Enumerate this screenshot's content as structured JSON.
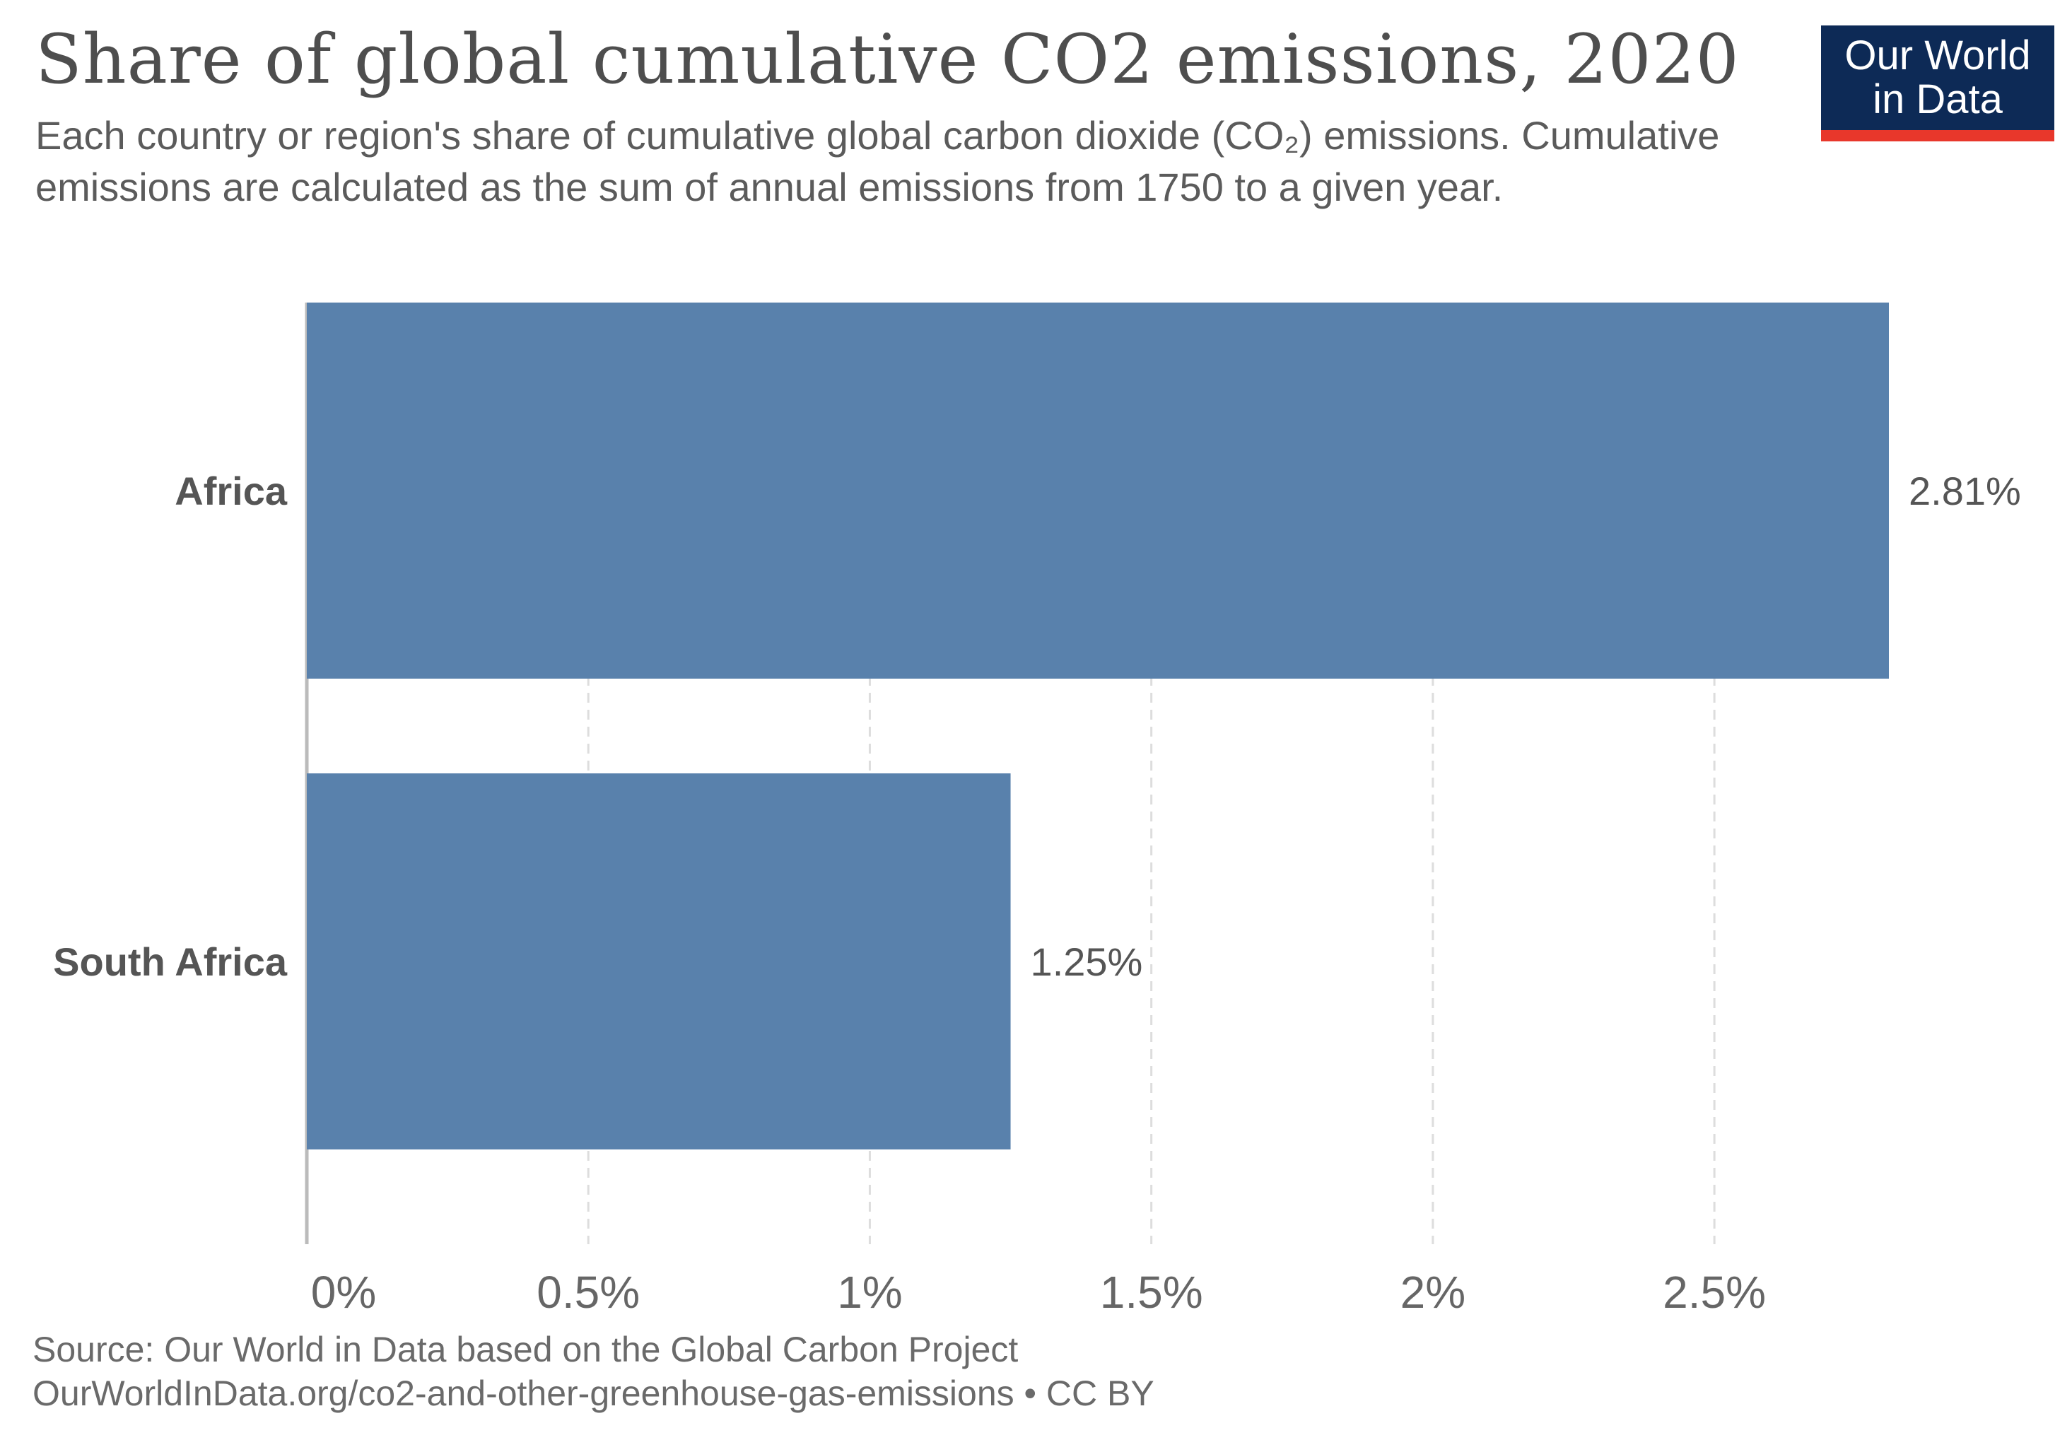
{
  "header": {
    "title": "Share of global cumulative CO2 emissions, 2020",
    "subtitle": "Each country or region's share of cumulative global carbon dioxide (CO₂) emissions. Cumulative emissions are calculated as the sum of annual emissions from 1750 to a given year."
  },
  "logo": {
    "line1": "Our World",
    "line2": "in Data"
  },
  "footer": {
    "source": "Source: Our World in Data based on the Global Carbon Project",
    "url": "OurWorldInData.org/co2-and-other-greenhouse-gas-emissions • CC BY"
  },
  "colors": {
    "bar": "#5981ac",
    "grid": "#dddddd",
    "axis": "#bbbbbb"
  },
  "chart_data": {
    "type": "bar",
    "orientation": "horizontal",
    "title": "Share of global cumulative CO2 emissions, 2020",
    "categories": [
      "Africa",
      "South Africa"
    ],
    "values": [
      2.81,
      1.25
    ],
    "value_labels": [
      "2.81%",
      "1.25%"
    ],
    "xlim": [
      0,
      2.81
    ],
    "x_ticks": [
      0,
      0.5,
      1,
      1.5,
      2,
      2.5
    ],
    "x_tick_labels": [
      "0%",
      "0.5%",
      "1%",
      "1.5%",
      "2%",
      "2.5%"
    ],
    "xlabel": "",
    "ylabel": "",
    "grid": true
  }
}
